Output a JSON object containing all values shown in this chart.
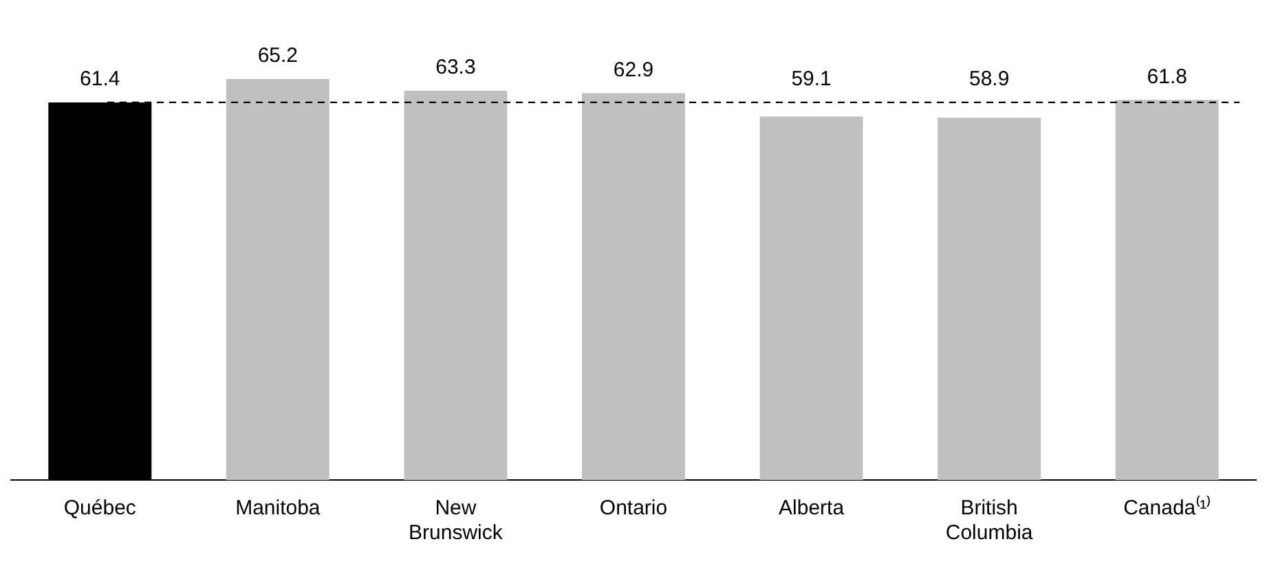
{
  "chart_data": {
    "type": "bar",
    "categories": [
      "Québec",
      "Manitoba",
      "New Brunswick",
      "Ontario",
      "Alberta",
      "British Columbia",
      "Canada⁽¹⁾"
    ],
    "values": [
      61.4,
      65.2,
      63.3,
      62.9,
      59.1,
      58.9,
      61.8
    ],
    "colors": [
      "#000000",
      "#c0c0c0",
      "#c0c0c0",
      "#c0c0c0",
      "#c0c0c0",
      "#c0c0c0",
      "#c0c0c0"
    ],
    "data_labels": true,
    "grid": false,
    "legend": false,
    "tick_labels": "x",
    "ref_lines": [
      {
        "axis": "y",
        "value": 61.4,
        "color": "#000000",
        "line_style": "dashed"
      }
    ]
  }
}
